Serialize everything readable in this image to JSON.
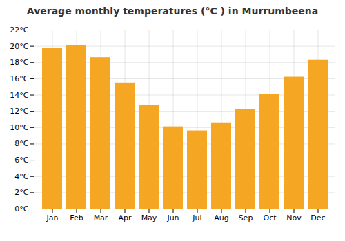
{
  "chart_data": {
    "type": "bar",
    "title": "Average monthly temperatures (°C ) in Murrumbeena",
    "categories": [
      "Jan",
      "Feb",
      "Mar",
      "Apr",
      "May",
      "Jun",
      "Jul",
      "Aug",
      "Sep",
      "Oct",
      "Nov",
      "Dec"
    ],
    "values": [
      19.8,
      20.1,
      18.6,
      15.5,
      12.7,
      10.1,
      9.6,
      10.6,
      12.2,
      14.1,
      16.2,
      18.3
    ],
    "color": "#F5A623",
    "ylim": [
      0,
      22
    ],
    "yticks": [
      {
        "value": 0,
        "label": "0°C"
      },
      {
        "value": 2,
        "label": "2°C"
      },
      {
        "value": 4,
        "label": "4°C"
      },
      {
        "value": 6,
        "label": "6°C"
      },
      {
        "value": 8,
        "label": "8°C"
      },
      {
        "value": 10,
        "label": "10°C"
      },
      {
        "value": 12,
        "label": "12°C"
      },
      {
        "value": 14,
        "label": "14°C"
      },
      {
        "value": 16,
        "label": "16°C"
      },
      {
        "value": 18,
        "label": "18°C"
      },
      {
        "value": 20,
        "label": "20°C"
      },
      {
        "value": 22,
        "label": "22°C"
      }
    ],
    "grid": true
  }
}
